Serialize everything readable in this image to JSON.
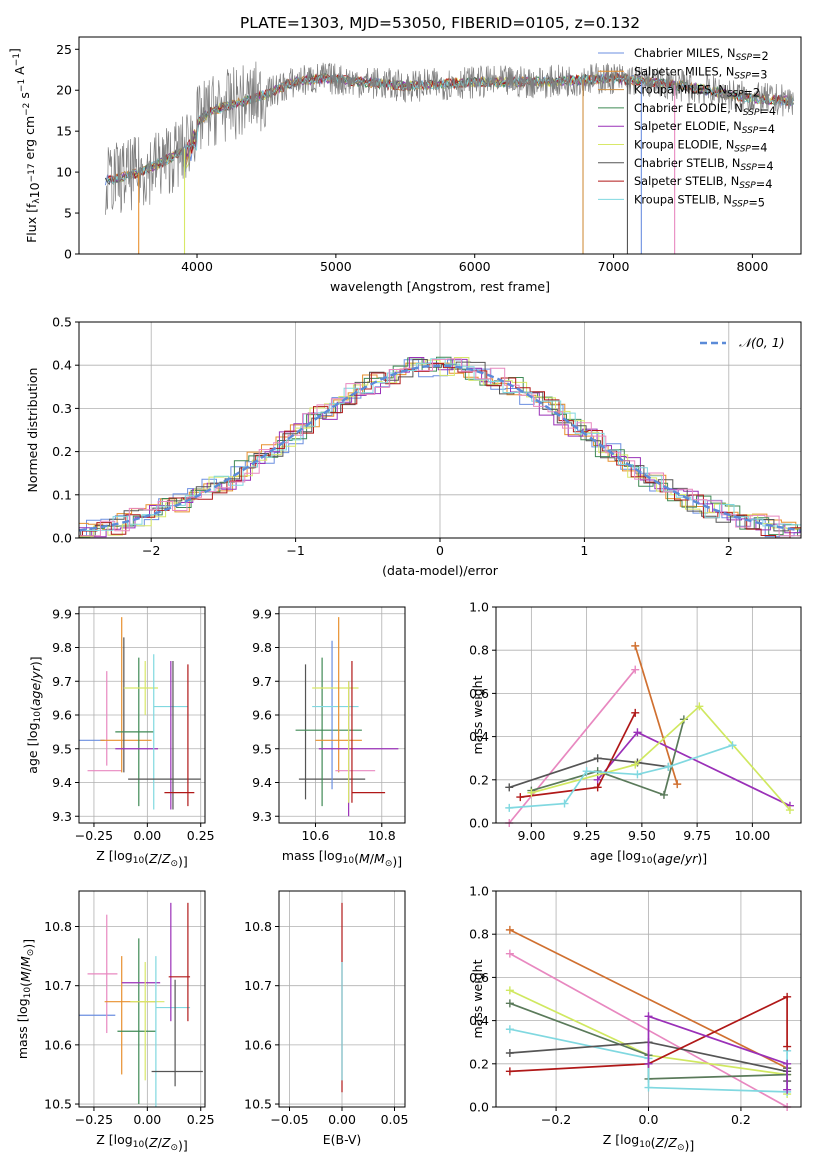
{
  "figure": {
    "title": "PLATE=1303, MJD=53050, FIBERID=0105, z=0.132"
  },
  "palette": {
    "Chabrier MILES": "#6b8fe0",
    "Salpeter MILES": "#e8902e",
    "Kroupa MILES": "#d09040",
    "Chabrier ELODIE": "#3f8a55",
    "Salpeter ELODIE": "#9a30b8",
    "Kroupa ELODIE": "#d8e868",
    "Chabrier STELIB": "#555555",
    "Salpeter STELIB": "#b01818",
    "Kroupa STELIB": "#80d8e0",
    "pink": "#e888c0",
    "orange": "#d07030",
    "darkgreen": "#5a7a5a",
    "lime": "#d0e860",
    "gray": "#808080"
  },
  "chart_data": [
    {
      "id": "spectrum",
      "type": "line",
      "xlabel": "wavelength [Angstrom, rest frame]",
      "ylabel": "Flux [f_λ10^-17 erg cm^-2 s^-1 A^-1]",
      "xlim": [
        3150,
        8350
      ],
      "ylim": [
        0,
        26.5
      ],
      "xticks": [
        4000,
        5000,
        6000,
        7000,
        8000
      ],
      "yticks": [
        0,
        5,
        10,
        15,
        20,
        25
      ],
      "legend": [
        "Chabrier MILES, N_SSP=2",
        "Salpeter MILES, N_SSP=3",
        "Kroupa MILES, N_SSP=2",
        "Chabrier ELODIE, N_SSP=4",
        "Salpeter ELODIE, N_SSP=4",
        "Kroupa ELODIE, N_SSP=4",
        "Chabrier STELIB, N_SSP=4",
        "Salpeter STELIB, N_SSP=4",
        "Kroupa STELIB, N_SSP=5"
      ],
      "legend_position": "top-right",
      "series_envelope": {
        "x": [
          3350,
          3600,
          3900,
          4000,
          4100,
          4300,
          4500,
          4700,
          4900,
          5200,
          5500,
          6000,
          6500,
          7000,
          7500,
          8000,
          8300
        ],
        "y": [
          9.0,
          10.0,
          12.5,
          16.0,
          17.5,
          18.5,
          19.5,
          21.0,
          21.5,
          21.0,
          20.5,
          21.0,
          21.0,
          21.5,
          20.5,
          19.0,
          18.7
        ]
      }
    },
    {
      "id": "residuals",
      "type": "line",
      "xlabel": "(data-model)/error",
      "ylabel": "Normed distribution",
      "xlim": [
        -2.5,
        2.5
      ],
      "ylim": [
        0,
        0.5
      ],
      "xticks": [
        -2,
        -1,
        0,
        1,
        2
      ],
      "yticks": [
        0.0,
        0.1,
        0.2,
        0.3,
        0.4,
        0.5
      ],
      "legend": [
        "𝒩(0, 1)"
      ],
      "legend_position": "top-right",
      "grid": true
    },
    {
      "id": "age_vs_Z",
      "type": "scatter",
      "xlabel": "Z [log10(Z/Z☉)]",
      "ylabel": "age  [log10(age/yr)]",
      "xlim": [
        -0.32,
        0.27
      ],
      "ylim": [
        9.28,
        9.92
      ],
      "xticks": [
        -0.25,
        0.0,
        0.25
      ],
      "xticklabels": [
        "−0.25",
        "0.00",
        "0.25"
      ],
      "yticks": [
        9.3,
        9.4,
        9.5,
        9.6,
        9.7,
        9.8,
        9.9
      ],
      "grid": true,
      "points": [
        {
          "x": -0.28,
          "y": 9.525,
          "xerr": 0.08,
          "yerr": 0.0,
          "color": "#6b8fe0"
        },
        {
          "x": -0.2,
          "y": 9.435,
          "xerr": 0.08,
          "yerr": 0.0,
          "color": "#e888c0"
        },
        {
          "x": -0.27,
          "y": 9.435,
          "xerr": 0.0,
          "yerr": 0.0,
          "color": "#e888c0"
        },
        {
          "x": -0.19,
          "y": 9.59,
          "xerr": 0.0,
          "yerr": 0.14,
          "color": "#e888c0"
        },
        {
          "x": -0.12,
          "y": 9.66,
          "xerr": 0.0,
          "yerr": 0.23,
          "color": "#e8902e"
        },
        {
          "x": -0.1,
          "y": 9.525,
          "xerr": 0.12,
          "yerr": 0.0,
          "color": "#e8902e"
        },
        {
          "x": -0.11,
          "y": 9.63,
          "xerr": 0.0,
          "yerr": 0.2,
          "color": "#555555"
        },
        {
          "x": -0.06,
          "y": 9.55,
          "xerr": 0.09,
          "yerr": 0.0,
          "color": "#3f8a55"
        },
        {
          "x": -0.04,
          "y": 9.55,
          "xerr": 0.0,
          "yerr": 0.22,
          "color": "#3f8a55"
        },
        {
          "x": -0.05,
          "y": 9.5,
          "xerr": 0.1,
          "yerr": 0.0,
          "color": "#9a30b8"
        },
        {
          "x": -0.01,
          "y": 9.68,
          "xerr": 0.0,
          "yerr": 0.08,
          "color": "#d8e868"
        },
        {
          "x": -0.03,
          "y": 9.68,
          "xerr": 0.08,
          "yerr": 0.0,
          "color": "#d8e868"
        },
        {
          "x": 0.03,
          "y": 9.55,
          "xerr": 0.0,
          "yerr": 0.23,
          "color": "#80d8e0"
        },
        {
          "x": 0.11,
          "y": 9.625,
          "xerr": 0.08,
          "yerr": 0.0,
          "color": "#80d8e0"
        },
        {
          "x": 0.11,
          "y": 9.54,
          "xerr": 0.0,
          "yerr": 0.22,
          "color": "#9a30b8"
        },
        {
          "x": 0.08,
          "y": 9.41,
          "xerr": 0.17,
          "yerr": 0.0,
          "color": "#555555"
        },
        {
          "x": 0.12,
          "y": 9.54,
          "xerr": 0.0,
          "yerr": 0.22,
          "color": "#555555"
        },
        {
          "x": 0.19,
          "y": 9.54,
          "xerr": 0.0,
          "yerr": 0.21,
          "color": "#b01818"
        },
        {
          "x": 0.15,
          "y": 9.37,
          "xerr": 0.07,
          "yerr": 0.0,
          "color": "#b01818"
        }
      ]
    },
    {
      "id": "age_vs_mass",
      "type": "scatter",
      "xlabel": "mass [log10(M/M☉)]",
      "ylabel": "",
      "xlim": [
        10.49,
        10.87
      ],
      "ylim": [
        9.28,
        9.92
      ],
      "xticks": [
        10.6,
        10.8
      ],
      "yticks": [
        9.3,
        9.4,
        9.5,
        9.6,
        9.7,
        9.8,
        9.9
      ],
      "grid": true,
      "points": [
        {
          "x": 10.65,
          "y": 9.41,
          "xerr": 0.1,
          "yerr": 0.0,
          "color": "#555555"
        },
        {
          "x": 10.57,
          "y": 9.55,
          "xerr": 0.0,
          "yerr": 0.2,
          "color": "#555555"
        },
        {
          "x": 10.62,
          "y": 9.55,
          "xerr": 0.0,
          "yerr": 0.22,
          "color": "#3f8a55"
        },
        {
          "x": 10.64,
          "y": 9.555,
          "xerr": 0.1,
          "yerr": 0.0,
          "color": "#3f8a55"
        },
        {
          "x": 10.65,
          "y": 9.6,
          "xerr": 0.0,
          "yerr": 0.22,
          "color": "#6b8fe0"
        },
        {
          "x": 10.66,
          "y": 9.625,
          "xerr": 0.07,
          "yerr": 0.0,
          "color": "#80d8e0"
        },
        {
          "x": 10.66,
          "y": 9.68,
          "xerr": 0.07,
          "yerr": 0.0,
          "color": "#d8e868"
        },
        {
          "x": 10.67,
          "y": 9.66,
          "xerr": 0.0,
          "yerr": 0.23,
          "color": "#e8902e"
        },
        {
          "x": 10.67,
          "y": 9.525,
          "xerr": 0.07,
          "yerr": 0.0,
          "color": "#e8902e"
        },
        {
          "x": 10.73,
          "y": 9.5,
          "xerr": 0.12,
          "yerr": 0.0,
          "color": "#9a30b8"
        },
        {
          "x": 10.7,
          "y": 9.5,
          "xerr": 0.0,
          "yerr": 0.2,
          "color": "#9a30b8"
        },
        {
          "x": 10.72,
          "y": 9.435,
          "xerr": 0.06,
          "yerr": 0.0,
          "color": "#e888c0"
        },
        {
          "x": 10.71,
          "y": 9.55,
          "xerr": 0.0,
          "yerr": 0.21,
          "color": "#b01818"
        },
        {
          "x": 10.76,
          "y": 9.37,
          "xerr": 0.05,
          "yerr": 0.0,
          "color": "#b01818"
        },
        {
          "x": 10.7,
          "y": 9.52,
          "xerr": 0.0,
          "yerr": 0.18,
          "color": "#d8e868"
        }
      ]
    },
    {
      "id": "weight_vs_age",
      "type": "line",
      "xlabel": "age  [log10(age/yr)]",
      "ylabel": "mass weight",
      "xlim": [
        8.84,
        10.22
      ],
      "ylim": [
        0,
        1.0
      ],
      "xticks": [
        9.0,
        9.25,
        9.5,
        9.75,
        10.0
      ],
      "xticklabels": [
        "9.00",
        "9.25",
        "9.50",
        "9.75",
        "10.00"
      ],
      "yticks": [
        0.0,
        0.2,
        0.4,
        0.6,
        0.8,
        1.0
      ],
      "grid": true,
      "series": [
        {
          "color": "#e888c0",
          "x": [
            8.9,
            9.47
          ],
          "y": [
            0.0,
            0.71
          ]
        },
        {
          "color": "#d07030",
          "x": [
            9.47,
            9.66
          ],
          "y": [
            0.82,
            0.18
          ]
        },
        {
          "color": "#9a30b8",
          "x": [
            9.3,
            9.48,
            10.17
          ],
          "y": [
            0.2,
            0.42,
            0.08
          ]
        },
        {
          "color": "#b01818",
          "x": [
            8.95,
            9.3,
            9.47
          ],
          "y": [
            0.12,
            0.165,
            0.51
          ]
        },
        {
          "color": "#555555",
          "x": [
            8.9,
            9.3,
            9.48,
            9.62
          ],
          "y": [
            0.165,
            0.3,
            0.28,
            0.26
          ]
        },
        {
          "color": "#5a7a5a",
          "x": [
            9.0,
            9.3,
            9.6,
            9.69
          ],
          "y": [
            0.15,
            0.24,
            0.13,
            0.48
          ]
        },
        {
          "color": "#d0e860",
          "x": [
            9.0,
            9.47,
            9.76,
            10.17
          ],
          "y": [
            0.14,
            0.27,
            0.54,
            0.06
          ]
        },
        {
          "color": "#80d8e0",
          "x": [
            8.9,
            9.15,
            9.25,
            9.48,
            9.62,
            9.91
          ],
          "y": [
            0.07,
            0.09,
            0.24,
            0.225,
            0.26,
            0.36
          ]
        }
      ]
    },
    {
      "id": "mass_vs_Z",
      "type": "scatter",
      "xlabel": "Z [log10(Z/Z☉)]",
      "ylabel": "mass [log10(M/M☉)]",
      "xlim": [
        -0.32,
        0.27
      ],
      "ylim": [
        10.495,
        10.86
      ],
      "xticks": [
        -0.25,
        0.0,
        0.25
      ],
      "xticklabels": [
        "−0.25",
        "0.00",
        "0.25"
      ],
      "yticks": [
        10.5,
        10.6,
        10.7,
        10.8
      ],
      "grid": true,
      "points": [
        {
          "x": -0.24,
          "y": 10.65,
          "xerr": 0.09,
          "yerr": 0.0,
          "color": "#6b8fe0"
        },
        {
          "x": -0.21,
          "y": 10.72,
          "xerr": 0.07,
          "yerr": 0.0,
          "color": "#e888c0"
        },
        {
          "x": -0.19,
          "y": 10.72,
          "xerr": 0.0,
          "yerr": 0.1,
          "color": "#e888c0"
        },
        {
          "x": -0.12,
          "y": 10.65,
          "xerr": 0.0,
          "yerr": 0.1,
          "color": "#e8902e"
        },
        {
          "x": -0.08,
          "y": 10.673,
          "xerr": 0.12,
          "yerr": 0.0,
          "color": "#e8902e"
        },
        {
          "x": -0.05,
          "y": 10.623,
          "xerr": 0.09,
          "yerr": 0.0,
          "color": "#3f8a55"
        },
        {
          "x": -0.04,
          "y": 10.64,
          "xerr": 0.0,
          "yerr": 0.14,
          "color": "#3f8a55"
        },
        {
          "x": -0.03,
          "y": 10.705,
          "xerr": 0.09,
          "yerr": 0.0,
          "color": "#9a30b8"
        },
        {
          "x": -0.01,
          "y": 10.64,
          "xerr": 0.0,
          "yerr": 0.1,
          "color": "#d8e868"
        },
        {
          "x": 0.0,
          "y": 10.673,
          "xerr": 0.08,
          "yerr": 0.0,
          "color": "#d8e868"
        },
        {
          "x": 0.04,
          "y": 10.62,
          "xerr": 0.0,
          "yerr": 0.13,
          "color": "#80d8e0"
        },
        {
          "x": 0.12,
          "y": 10.663,
          "xerr": 0.08,
          "yerr": 0.0,
          "color": "#80d8e0"
        },
        {
          "x": 0.11,
          "y": 10.74,
          "xerr": 0.0,
          "yerr": 0.1,
          "color": "#9a30b8"
        },
        {
          "x": 0.13,
          "y": 10.62,
          "xerr": 0.0,
          "yerr": 0.09,
          "color": "#555555"
        },
        {
          "x": 0.14,
          "y": 10.555,
          "xerr": 0.12,
          "yerr": 0.0,
          "color": "#555555"
        },
        {
          "x": 0.19,
          "y": 10.74,
          "xerr": 0.0,
          "yerr": 0.1,
          "color": "#b01818"
        },
        {
          "x": 0.15,
          "y": 10.715,
          "xerr": 0.05,
          "yerr": 0.0,
          "color": "#b01818"
        }
      ]
    },
    {
      "id": "mass_vs_EBV",
      "type": "scatter",
      "xlabel": "E(B-V)",
      "ylabel": "",
      "xlim": [
        -0.06,
        0.06
      ],
      "ylim": [
        10.495,
        10.86
      ],
      "xticks": [
        -0.05,
        0.0,
        0.05
      ],
      "xticklabels": [
        "−0.05",
        "0.00",
        "0.05"
      ],
      "yticks": [
        10.5,
        10.6,
        10.7,
        10.8
      ],
      "grid": true,
      "points": [
        {
          "x": 0.0,
          "y": 10.68,
          "xerr": 0.0,
          "yerr": 0.16,
          "color": "#b01818"
        },
        {
          "x": 0.0,
          "y": 10.64,
          "xerr": 0.0,
          "yerr": 0.1,
          "color": "#80d8e0"
        }
      ]
    },
    {
      "id": "weight_vs_Z",
      "type": "line",
      "xlabel": "Z [log10(Z/Z☉)]",
      "ylabel": "mass weight",
      "xlim": [
        -0.33,
        0.33
      ],
      "ylim": [
        0,
        1.0
      ],
      "xticks": [
        -0.2,
        0.0,
        0.2
      ],
      "xticklabels": [
        "−0.2",
        "0.0",
        "0.2"
      ],
      "yticks": [
        0.0,
        0.2,
        0.4,
        0.6,
        0.8,
        1.0
      ],
      "grid": true,
      "series": [
        {
          "color": "#d07030",
          "x": [
            -0.3,
            0.3
          ],
          "y": [
            0.82,
            0.18
          ]
        },
        {
          "color": "#e888c0",
          "x": [
            -0.3,
            0.3
          ],
          "y": [
            0.71,
            0.0
          ]
        },
        {
          "color": "#d0e860",
          "x": [
            -0.3,
            0.0,
            0.3,
            0.3
          ],
          "y": [
            0.54,
            0.24,
            0.15,
            0.06
          ]
        },
        {
          "color": "#5a7a5a",
          "x": [
            -0.3,
            0.0,
            0.0,
            0.3,
            0.3
          ],
          "y": [
            0.48,
            0.24,
            0.13,
            0.15,
            0.18
          ]
        },
        {
          "color": "#80d8e0",
          "x": [
            -0.3,
            0.0,
            0.0,
            0.3,
            0.3
          ],
          "y": [
            0.36,
            0.225,
            0.09,
            0.07,
            0.26
          ]
        },
        {
          "color": "#555555",
          "x": [
            -0.3,
            0.0,
            0.3,
            0.3
          ],
          "y": [
            0.25,
            0.3,
            0.165,
            0.12
          ]
        },
        {
          "color": "#b01818",
          "x": [
            -0.3,
            0.0,
            0.3,
            0.3
          ],
          "y": [
            0.165,
            0.2,
            0.51,
            0.28
          ]
        },
        {
          "color": "#9a30b8",
          "x": [
            0.0,
            0.0,
            0.3,
            0.3
          ],
          "y": [
            0.2,
            0.42,
            0.2,
            0.08
          ]
        }
      ]
    }
  ]
}
